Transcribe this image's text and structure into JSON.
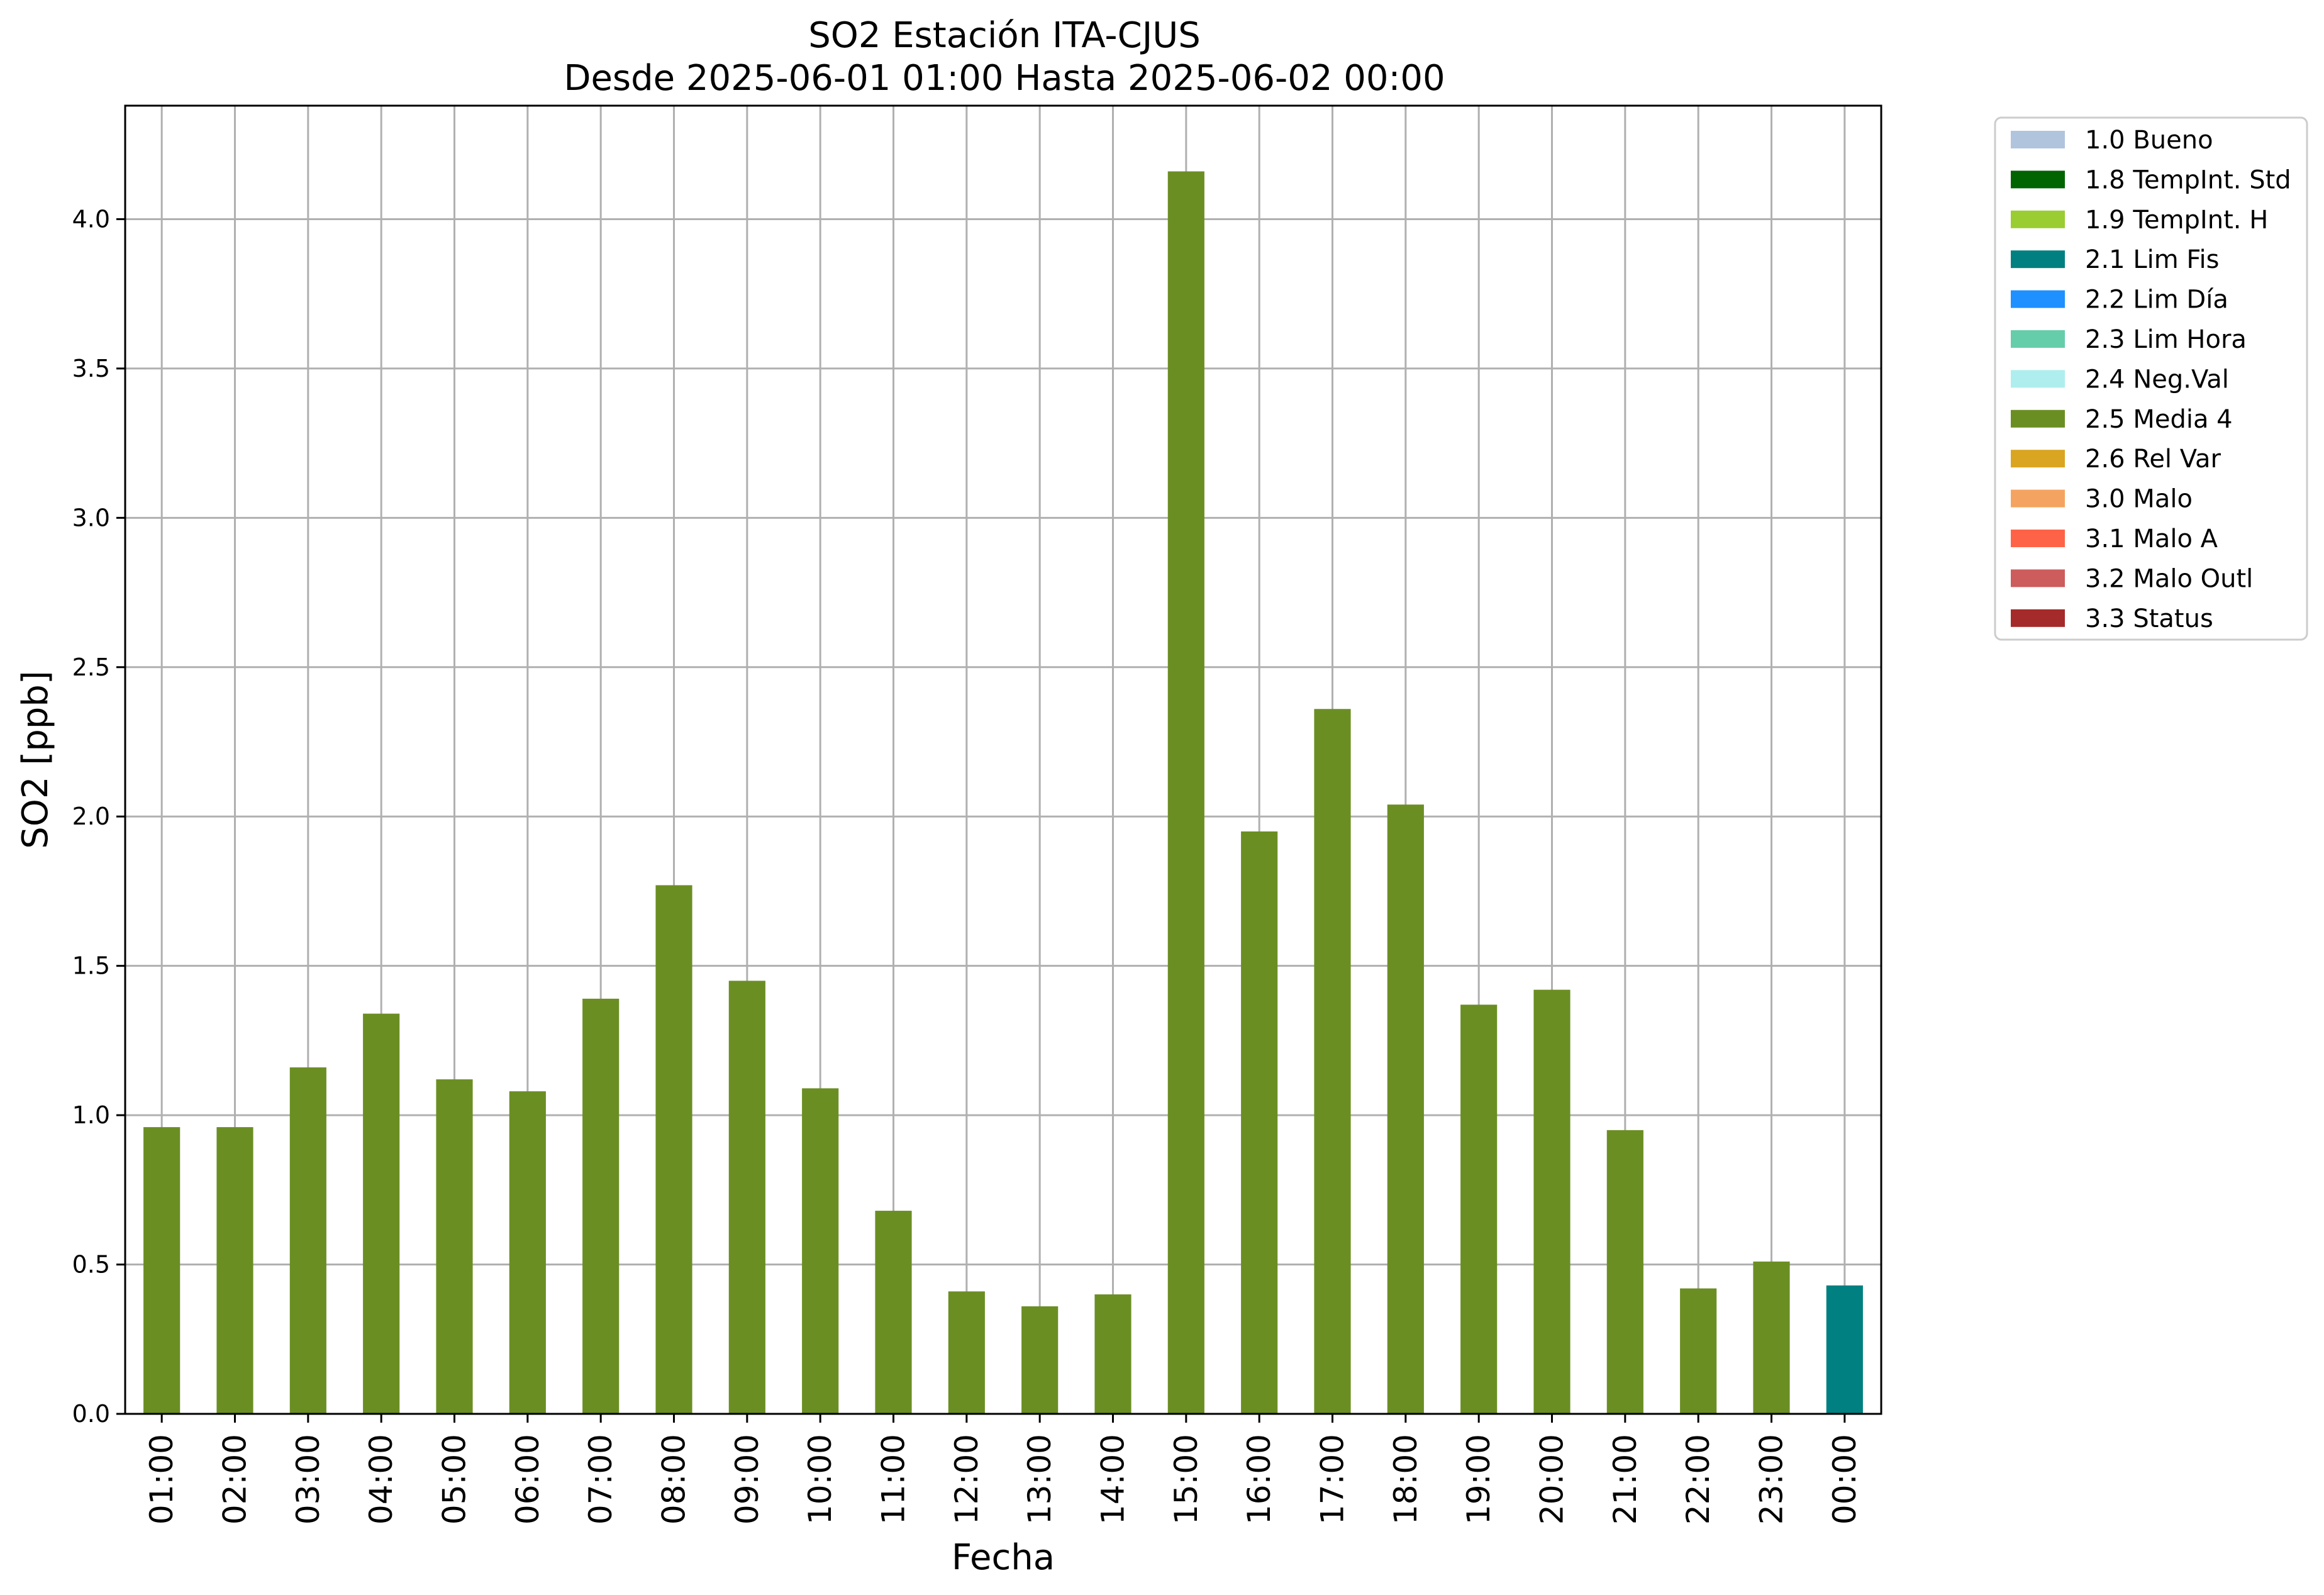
{
  "chart_data": {
    "type": "bar",
    "title": "SO2 Estación ITA-CJUS",
    "subtitle": "Desde 2025-06-01 01:00 Hasta 2025-06-02 00:00",
    "xlabel": "Fecha",
    "ylabel": "SO2 [ppb]",
    "ylim": [
      0,
      4.38
    ],
    "yticks": [
      "0.0",
      "0.5",
      "1.0",
      "1.5",
      "2.0",
      "2.5",
      "3.0",
      "3.5",
      "4.0"
    ],
    "grid": true,
    "legend_position": "outside-top-right",
    "categories": [
      "01:00",
      "02:00",
      "03:00",
      "04:00",
      "05:00",
      "06:00",
      "07:00",
      "08:00",
      "09:00",
      "10:00",
      "11:00",
      "12:00",
      "13:00",
      "14:00",
      "15:00",
      "16:00",
      "17:00",
      "18:00",
      "19:00",
      "20:00",
      "21:00",
      "22:00",
      "23:00",
      "00:00"
    ],
    "values": [
      0.96,
      0.96,
      1.16,
      1.34,
      1.12,
      1.08,
      1.39,
      1.77,
      1.45,
      1.09,
      0.68,
      0.41,
      0.36,
      0.4,
      4.16,
      1.95,
      2.36,
      2.04,
      1.37,
      1.42,
      0.95,
      0.42,
      0.51,
      0.43
    ],
    "flags": [
      "2.5 Media 4",
      "2.5 Media 4",
      "2.5 Media 4",
      "2.5 Media 4",
      "2.5 Media 4",
      "2.5 Media 4",
      "2.5 Media 4",
      "2.5 Media 4",
      "2.5 Media 4",
      "2.5 Media 4",
      "2.5 Media 4",
      "2.5 Media 4",
      "2.5 Media 4",
      "2.5 Media 4",
      "2.5 Media 4",
      "2.5 Media 4",
      "2.5 Media 4",
      "2.5 Media 4",
      "2.5 Media 4",
      "2.5 Media 4",
      "2.5 Media 4",
      "2.5 Media 4",
      "2.5 Media 4",
      "2.1 Lim Fis"
    ],
    "legend": [
      {
        "label": "1.0 Bueno",
        "color": "#b0c4de"
      },
      {
        "label": "1.8 TempInt. Std",
        "color": "#006400"
      },
      {
        "label": "1.9 TempInt. H",
        "color": "#9acd32"
      },
      {
        "label": "2.1 Lim Fis",
        "color": "#008080"
      },
      {
        "label": "2.2 Lim Día",
        "color": "#1e90ff"
      },
      {
        "label": "2.3 Lim Hora",
        "color": "#66cdaa"
      },
      {
        "label": "2.4 Neg.Val",
        "color": "#afeeee"
      },
      {
        "label": "2.5 Media 4",
        "color": "#6b8e23"
      },
      {
        "label": "2.6 Rel Var",
        "color": "#daa520"
      },
      {
        "label": "3.0 Malo",
        "color": "#f4a460"
      },
      {
        "label": "3.1 Malo A",
        "color": "#ff6347"
      },
      {
        "label": "3.2 Malo Outl",
        "color": "#cd5c5c"
      },
      {
        "label": "3.3 Status",
        "color": "#a52a2a"
      }
    ]
  }
}
